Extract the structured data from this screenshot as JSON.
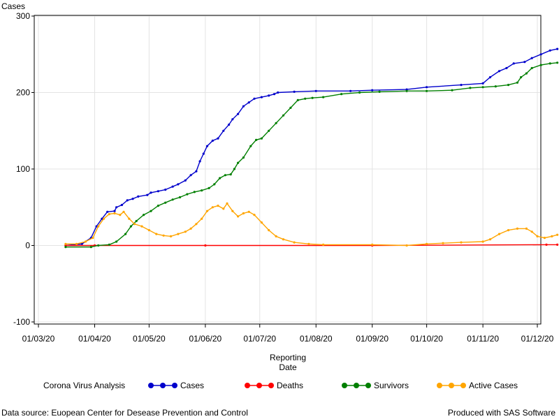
{
  "chart_data": {
    "type": "line",
    "title": "",
    "ylabel": "Cases",
    "xlabel_lines": [
      "Reporting",
      "Date"
    ],
    "ylim": [
      -100,
      300
    ],
    "yticks": [
      -100,
      0,
      100,
      200,
      300
    ],
    "xlim": [
      "2020-03-01",
      "2020-12-01"
    ],
    "xticks": [
      {
        "date": "2020-03-01",
        "label": "01/03/20"
      },
      {
        "date": "2020-04-01",
        "label": "01/04/20"
      },
      {
        "date": "2020-05-01",
        "label": "01/05/20"
      },
      {
        "date": "2020-06-01",
        "label": "01/06/20"
      },
      {
        "date": "2020-07-01",
        "label": "01/07/20"
      },
      {
        "date": "2020-08-01",
        "label": "01/08/20"
      },
      {
        "date": "2020-09-01",
        "label": "01/09/20"
      },
      {
        "date": "2020-10-01",
        "label": "01/10/20"
      },
      {
        "date": "2020-11-01",
        "label": "01/11/20"
      },
      {
        "date": "2020-12-01",
        "label": "01/12/20"
      }
    ],
    "grid": true,
    "legend_position": "bottom",
    "legend_title": "Corona Virus Analysis",
    "series": [
      {
        "name": "Cases",
        "color": "#0000cc",
        "points": [
          [
            "2020-03-16",
            0
          ],
          [
            "2020-03-25",
            2
          ],
          [
            "2020-03-30",
            10
          ],
          [
            "2020-04-02",
            25
          ],
          [
            "2020-04-05",
            35
          ],
          [
            "2020-04-08",
            44
          ],
          [
            "2020-04-12",
            45
          ],
          [
            "2020-04-13",
            50
          ],
          [
            "2020-04-16",
            53
          ],
          [
            "2020-04-19",
            59
          ],
          [
            "2020-04-22",
            61
          ],
          [
            "2020-04-25",
            64
          ],
          [
            "2020-04-30",
            66
          ],
          [
            "2020-05-02",
            69
          ],
          [
            "2020-05-06",
            71
          ],
          [
            "2020-05-10",
            73
          ],
          [
            "2020-05-14",
            77
          ],
          [
            "2020-05-17",
            80
          ],
          [
            "2020-05-21",
            85
          ],
          [
            "2020-05-24",
            92
          ],
          [
            "2020-05-27",
            97
          ],
          [
            "2020-05-29",
            110
          ],
          [
            "2020-05-31",
            120
          ],
          [
            "2020-06-02",
            130
          ],
          [
            "2020-06-05",
            137
          ],
          [
            "2020-06-08",
            140
          ],
          [
            "2020-06-11",
            150
          ],
          [
            "2020-06-14",
            158
          ],
          [
            "2020-06-16",
            165
          ],
          [
            "2020-06-19",
            172
          ],
          [
            "2020-06-22",
            182
          ],
          [
            "2020-06-25",
            187
          ],
          [
            "2020-06-28",
            192
          ],
          [
            "2020-07-02",
            194
          ],
          [
            "2020-07-06",
            196
          ],
          [
            "2020-07-09",
            198
          ],
          [
            "2020-07-11",
            200
          ],
          [
            "2020-07-20",
            201
          ],
          [
            "2020-08-01",
            202
          ],
          [
            "2020-08-20",
            202
          ],
          [
            "2020-09-01",
            203
          ],
          [
            "2020-09-20",
            204
          ],
          [
            "2020-10-01",
            207
          ],
          [
            "2020-10-20",
            210
          ],
          [
            "2020-11-01",
            212
          ],
          [
            "2020-11-05",
            220
          ],
          [
            "2020-11-10",
            228
          ],
          [
            "2020-11-14",
            232
          ],
          [
            "2020-11-18",
            238
          ],
          [
            "2020-11-24",
            240
          ],
          [
            "2020-11-28",
            245
          ],
          [
            "2020-12-03",
            250
          ],
          [
            "2020-12-08",
            255
          ],
          [
            "2020-12-12",
            257
          ]
        ]
      },
      {
        "name": "Deaths",
        "color": "#ff0000",
        "points": [
          [
            "2020-03-16",
            0
          ],
          [
            "2020-04-01",
            0
          ],
          [
            "2020-06-01",
            0
          ],
          [
            "2020-09-01",
            0
          ],
          [
            "2020-12-06",
            1
          ],
          [
            "2020-12-12",
            1
          ]
        ]
      },
      {
        "name": "Survivors",
        "color": "#007f00",
        "points": [
          [
            "2020-03-16",
            -2
          ],
          [
            "2020-03-30",
            -2
          ],
          [
            "2020-04-03",
            0
          ],
          [
            "2020-04-09",
            1
          ],
          [
            "2020-04-13",
            5
          ],
          [
            "2020-04-18",
            15
          ],
          [
            "2020-04-21",
            25
          ],
          [
            "2020-04-24",
            32
          ],
          [
            "2020-04-28",
            40
          ],
          [
            "2020-05-02",
            45
          ],
          [
            "2020-05-06",
            52
          ],
          [
            "2020-05-10",
            56
          ],
          [
            "2020-05-14",
            60
          ],
          [
            "2020-05-18",
            63
          ],
          [
            "2020-05-22",
            67
          ],
          [
            "2020-05-26",
            70
          ],
          [
            "2020-05-30",
            72
          ],
          [
            "2020-06-03",
            75
          ],
          [
            "2020-06-06",
            80
          ],
          [
            "2020-06-09",
            88
          ],
          [
            "2020-06-12",
            92
          ],
          [
            "2020-06-15",
            93
          ],
          [
            "2020-06-17",
            100
          ],
          [
            "2020-06-19",
            108
          ],
          [
            "2020-06-22",
            115
          ],
          [
            "2020-06-26",
            130
          ],
          [
            "2020-06-29",
            138
          ],
          [
            "2020-07-02",
            140
          ],
          [
            "2020-07-06",
            150
          ],
          [
            "2020-07-10",
            160
          ],
          [
            "2020-07-14",
            170
          ],
          [
            "2020-07-18",
            180
          ],
          [
            "2020-07-22",
            190
          ],
          [
            "2020-07-26",
            192
          ],
          [
            "2020-07-30",
            193
          ],
          [
            "2020-08-05",
            194
          ],
          [
            "2020-08-15",
            198
          ],
          [
            "2020-08-25",
            200
          ],
          [
            "2020-09-05",
            201
          ],
          [
            "2020-09-20",
            202
          ],
          [
            "2020-10-01",
            202
          ],
          [
            "2020-10-15",
            203
          ],
          [
            "2020-10-25",
            206
          ],
          [
            "2020-11-01",
            207
          ],
          [
            "2020-11-08",
            208
          ],
          [
            "2020-11-15",
            210
          ],
          [
            "2020-11-20",
            213
          ],
          [
            "2020-11-22",
            220
          ],
          [
            "2020-11-25",
            225
          ],
          [
            "2020-11-28",
            232
          ],
          [
            "2020-12-03",
            236
          ],
          [
            "2020-12-08",
            238
          ],
          [
            "2020-12-12",
            239
          ]
        ]
      },
      {
        "name": "Active Cases",
        "color": "#ffa500",
        "points": [
          [
            "2020-03-16",
            2
          ],
          [
            "2020-03-22",
            2
          ],
          [
            "2020-03-27",
            5
          ],
          [
            "2020-03-31",
            10
          ],
          [
            "2020-04-03",
            25
          ],
          [
            "2020-04-06",
            35
          ],
          [
            "2020-04-09",
            41
          ],
          [
            "2020-04-12",
            42
          ],
          [
            "2020-04-15",
            40
          ],
          [
            "2020-04-17",
            44
          ],
          [
            "2020-04-20",
            35
          ],
          [
            "2020-04-23",
            28
          ],
          [
            "2020-04-27",
            25
          ],
          [
            "2020-05-01",
            20
          ],
          [
            "2020-05-05",
            15
          ],
          [
            "2020-05-09",
            13
          ],
          [
            "2020-05-13",
            12
          ],
          [
            "2020-05-17",
            15
          ],
          [
            "2020-05-21",
            18
          ],
          [
            "2020-05-24",
            22
          ],
          [
            "2020-05-27",
            28
          ],
          [
            "2020-05-30",
            35
          ],
          [
            "2020-06-02",
            45
          ],
          [
            "2020-06-05",
            50
          ],
          [
            "2020-06-08",
            52
          ],
          [
            "2020-06-11",
            48
          ],
          [
            "2020-06-13",
            55
          ],
          [
            "2020-06-16",
            45
          ],
          [
            "2020-06-19",
            38
          ],
          [
            "2020-06-22",
            42
          ],
          [
            "2020-06-25",
            44
          ],
          [
            "2020-06-28",
            40
          ],
          [
            "2020-07-02",
            30
          ],
          [
            "2020-07-06",
            20
          ],
          [
            "2020-07-10",
            12
          ],
          [
            "2020-07-14",
            8
          ],
          [
            "2020-07-20",
            4
          ],
          [
            "2020-07-28",
            2
          ],
          [
            "2020-08-05",
            1
          ],
          [
            "2020-09-01",
            1
          ],
          [
            "2020-09-20",
            0
          ],
          [
            "2020-10-01",
            2
          ],
          [
            "2020-10-10",
            3
          ],
          [
            "2020-10-20",
            4
          ],
          [
            "2020-11-01",
            5
          ],
          [
            "2020-11-05",
            8
          ],
          [
            "2020-11-10",
            15
          ],
          [
            "2020-11-15",
            20
          ],
          [
            "2020-11-20",
            22
          ],
          [
            "2020-11-25",
            22
          ],
          [
            "2020-11-28",
            18
          ],
          [
            "2020-12-01",
            12
          ],
          [
            "2020-12-05",
            10
          ],
          [
            "2020-12-09",
            12
          ],
          [
            "2020-12-12",
            14
          ]
        ]
      }
    ]
  },
  "footer": {
    "left": "Data source: Euopean Center for Desease Prevention and Control",
    "right": "Produced with SAS Software"
  }
}
